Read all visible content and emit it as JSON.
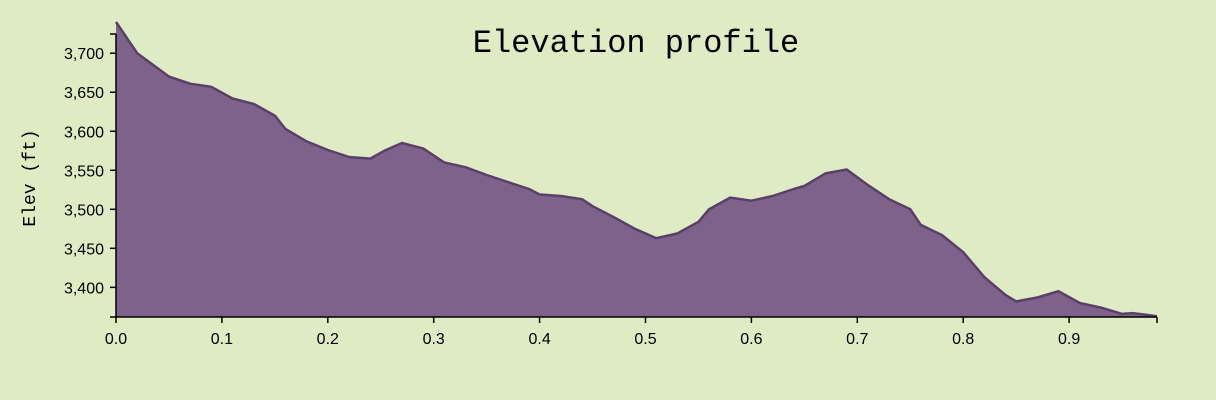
{
  "chart_data": {
    "type": "area",
    "title": "Elevation profile",
    "xlabel": "",
    "ylabel": "Elev (ft)",
    "xlim": [
      0,
      0.983
    ],
    "ylim": [
      3362,
      3740
    ],
    "x_ticks": [
      "0.0",
      "0.1",
      "0.2",
      "0.3",
      "0.4",
      "0.5",
      "0.6",
      "0.7",
      "0.8",
      "0.9"
    ],
    "y_ticks": [
      "3,400",
      "3,450",
      "3,500",
      "3,550",
      "3,600",
      "3,650",
      "3,700"
    ],
    "grid": false,
    "legend": "none",
    "colors": {
      "fill": "#7d6389",
      "stroke": "#5a3f6a",
      "background": "#dfebc2"
    },
    "series": [
      {
        "x": [
          0.0,
          0.02,
          0.05,
          0.07,
          0.09,
          0.11,
          0.13,
          0.15,
          0.16,
          0.18,
          0.2,
          0.22,
          0.24,
          0.255,
          0.27,
          0.29,
          0.31,
          0.33,
          0.35,
          0.37,
          0.39,
          0.4,
          0.42,
          0.44,
          0.45,
          0.47,
          0.49,
          0.51,
          0.53,
          0.55,
          0.56,
          0.58,
          0.6,
          0.62,
          0.64,
          0.65,
          0.67,
          0.69,
          0.71,
          0.73,
          0.75,
          0.76,
          0.78,
          0.8,
          0.82,
          0.84,
          0.85,
          0.87,
          0.89,
          0.91,
          0.93,
          0.95,
          0.96,
          0.983
        ],
        "y": [
          3740,
          3700,
          3670,
          3661,
          3657,
          3642,
          3635,
          3620,
          3603,
          3587,
          3576,
          3567,
          3565,
          3576,
          3585,
          3578,
          3560,
          3554,
          3544,
          3535,
          3526,
          3519,
          3517,
          3513,
          3504,
          3490,
          3475,
          3463,
          3469,
          3484,
          3500,
          3515,
          3511,
          3517,
          3526,
          3530,
          3546,
          3551,
          3531,
          3513,
          3500,
          3480,
          3467,
          3445,
          3413,
          3390,
          3382,
          3387,
          3395,
          3380,
          3374,
          3366,
          3367,
          3363
        ]
      }
    ]
  }
}
